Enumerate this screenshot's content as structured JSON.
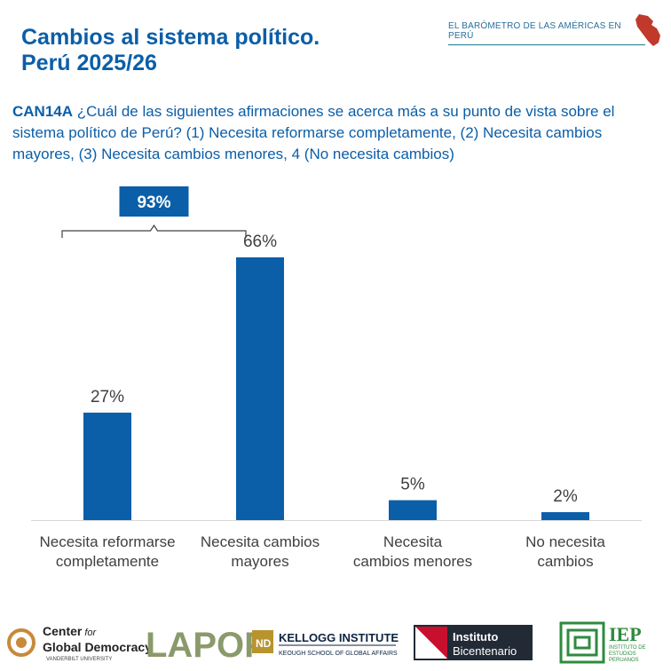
{
  "header": {
    "title_line1": "Cambios al sistema político.",
    "title_line2": "Perú 2025/26",
    "brand": "EL  BARÓMETRO DE LAS AMÉRICAS  EN PERÚ"
  },
  "question": {
    "code": "CAN14A",
    "text": " ¿Cuál de las siguientes afirmaciones se acerca más a su punto de vista sobre el sistema político de Perú? (1) Necesita reformarse completamente, (2) Necesita cambios mayores, (3) Necesita cambios menores, 4 (No necesita cambios)"
  },
  "chart_data": {
    "type": "bar",
    "categories": [
      [
        "Necesita reformarse",
        "completamente"
      ],
      [
        "Necesita cambios",
        "mayores"
      ],
      [
        "Necesita",
        "cambios menores"
      ],
      [
        "No necesita",
        "cambios"
      ]
    ],
    "values": [
      27,
      66,
      5,
      2
    ],
    "value_labels": [
      "27%",
      "66%",
      "5%",
      "2%"
    ],
    "ylim": [
      0,
      70
    ],
    "grid": false,
    "annotation": {
      "label": "93%",
      "spans_categories": [
        0,
        1
      ]
    },
    "bar_color": "#0b5ea8"
  },
  "footer": {
    "logos": {
      "ccgd_line1": "Center",
      "ccgd_for": "for",
      "ccgd_line2": "Global Democracy",
      "ccgd_line3": "VANDERBILT UNIVERSITY",
      "lapop": "LAPOP",
      "kellogg_line1": "KELLOGG INSTITUTE",
      "kellogg_line2": "KEOUGH SCHOOL OF GLOBAL AFFAIRS",
      "bicentenario_line1": "Instituto",
      "bicentenario_line2": "Bicentenario",
      "iep": "IEP",
      "iep_line1": "INSTITUTO DE",
      "iep_line2": "ESTUDIOS",
      "iep_line3": "PERUANOS"
    }
  }
}
